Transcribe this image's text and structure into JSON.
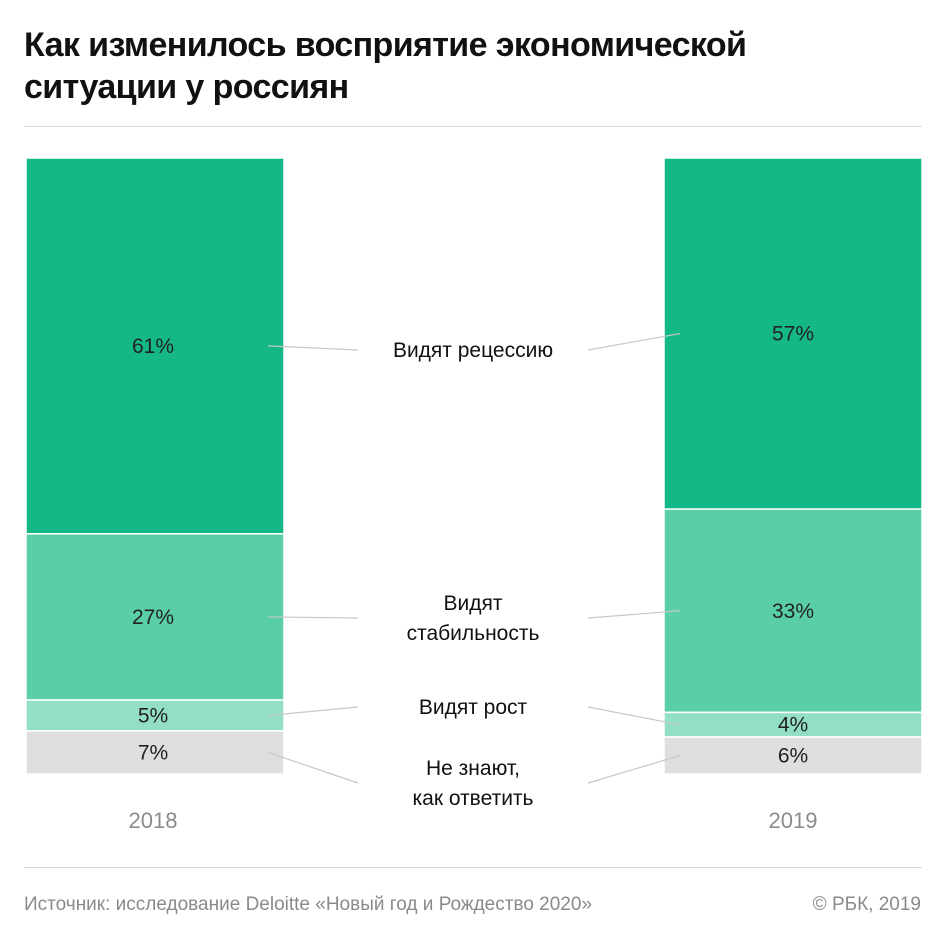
{
  "title": "Как изменилось восприятие экономической ситуации у россиян",
  "footer": {
    "source": "Источник: исследование Deloitte «Новый год и Рождество 2020»",
    "copyright": "© РБК, 2019"
  },
  "chart_data": {
    "type": "bar",
    "stacked": true,
    "title": "Как изменилось восприятие экономической ситуации у россиян",
    "categories": [
      "2018",
      "2019"
    ],
    "series": [
      {
        "name": "Видят рецессию",
        "label_lines": [
          "Видят рецессию"
        ],
        "values": [
          61,
          57
        ],
        "color": "#14b887",
        "value_labels": [
          "61%",
          "57%"
        ]
      },
      {
        "name": "Видят стабильность",
        "label_lines": [
          "Видят",
          "стабильность"
        ],
        "values": [
          27,
          33
        ],
        "color": "#5acfa6",
        "value_labels": [
          "27%",
          "33%"
        ]
      },
      {
        "name": "Видят рост",
        "label_lines": [
          "Видят рост"
        ],
        "values": [
          5,
          4
        ],
        "color": "#92dfc4",
        "value_labels": [
          "5%",
          "4%"
        ]
      },
      {
        "name": "Не знают, как ответить",
        "label_lines": [
          "Не знают,",
          "как ответить"
        ],
        "values": [
          7,
          6
        ],
        "color": "#dedede",
        "value_labels": [
          "7%",
          "6%"
        ]
      }
    ],
    "ylim": [
      0,
      100
    ],
    "xlabel": "",
    "ylabel": "",
    "grid": false,
    "legend": "center"
  }
}
